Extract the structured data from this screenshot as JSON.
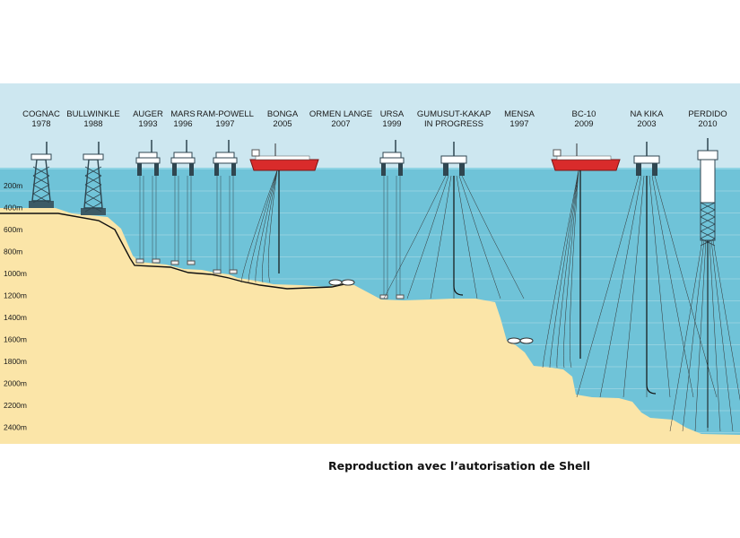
{
  "platforms": [
    {
      "name": "COGNAC",
      "year": "1978",
      "type": "jacket"
    },
    {
      "name": "BULLWINKLE",
      "year": "1988",
      "type": "jacket"
    },
    {
      "name": "AUGER",
      "year": "1993",
      "type": "tlp"
    },
    {
      "name": "MARS",
      "year": "1996",
      "type": "tlp"
    },
    {
      "name": "RAM-POWELL",
      "year": "1997",
      "type": "tlp"
    },
    {
      "name": "BONGA",
      "year": "2005",
      "type": "fpso"
    },
    {
      "name": "ORMEN LANGE",
      "year": "2007",
      "type": "subsea"
    },
    {
      "name": "URSA",
      "year": "1999",
      "type": "tlp"
    },
    {
      "name": "GUMUSUT-KAKAP",
      "year": "IN PROGRESS",
      "type": "semi"
    },
    {
      "name": "MENSA",
      "year": "1997",
      "type": "subsea"
    },
    {
      "name": "BC-10",
      "year": "2009",
      "type": "fpso"
    },
    {
      "name": "NA KIKA",
      "year": "2003",
      "type": "semi"
    },
    {
      "name": "PERDIDO",
      "year": "2010",
      "type": "spar"
    }
  ],
  "depth_labels": [
    "200m",
    "400m",
    "600m",
    "800m",
    "1000m",
    "1200m",
    "1400m",
    "1600m",
    "1800m",
    "2000m",
    "2200m",
    "2400m"
  ],
  "credit": "Reproduction avec l’autorisation de Shell",
  "colors": {
    "sky": "#cde7f0",
    "sea": "#6fc3d8",
    "seabed": "#fbe5a8",
    "vessel": "#d92b2b",
    "structure": "#3c5a66"
  }
}
